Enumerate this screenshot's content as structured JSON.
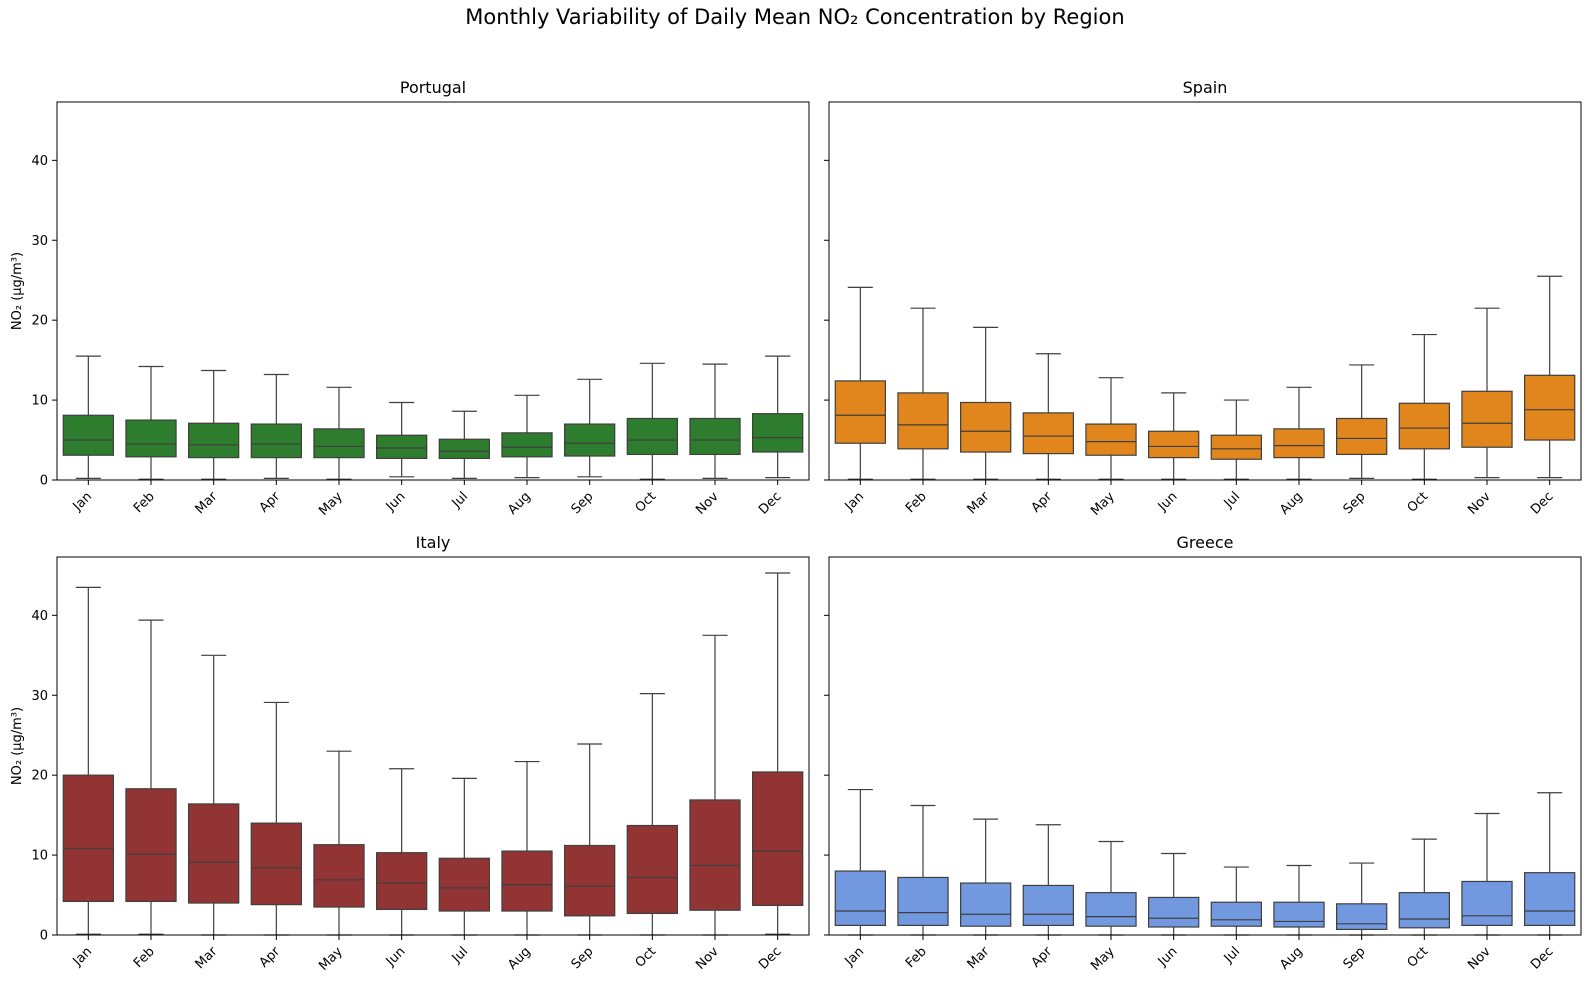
{
  "figure": {
    "title": "Monthly Variability of Daily Mean NO₂ Concentration by Region"
  },
  "chart_data": [
    {
      "type": "box",
      "title": "Portugal",
      "ylabel": "NO₂ (µg/m³)",
      "ylim": [
        0,
        47.3
      ],
      "yticks": [
        0,
        10,
        20,
        30,
        40
      ],
      "categories": [
        "Jan",
        "Feb",
        "Mar",
        "Apr",
        "May",
        "Jun",
        "Jul",
        "Aug",
        "Sep",
        "Oct",
        "Nov",
        "Dec"
      ],
      "color": "#2e7d2e",
      "boxes": [
        {
          "whislo": 0.2,
          "q1": 3.1,
          "med": 5.0,
          "q3": 8.1,
          "whishi": 15.5
        },
        {
          "whislo": 0.1,
          "q1": 2.9,
          "med": 4.5,
          "q3": 7.5,
          "whishi": 14.2
        },
        {
          "whislo": 0.1,
          "q1": 2.8,
          "med": 4.4,
          "q3": 7.1,
          "whishi": 13.7
        },
        {
          "whislo": 0.2,
          "q1": 2.8,
          "med": 4.5,
          "q3": 7.0,
          "whishi": 13.2
        },
        {
          "whislo": 0.1,
          "q1": 2.8,
          "med": 4.2,
          "q3": 6.4,
          "whishi": 11.6
        },
        {
          "whislo": 0.4,
          "q1": 2.7,
          "med": 4.0,
          "q3": 5.6,
          "whishi": 9.7
        },
        {
          "whislo": 0.2,
          "q1": 2.7,
          "med": 3.6,
          "q3": 5.1,
          "whishi": 8.6
        },
        {
          "whislo": 0.3,
          "q1": 2.9,
          "med": 4.1,
          "q3": 5.9,
          "whishi": 10.6
        },
        {
          "whislo": 0.4,
          "q1": 3.0,
          "med": 4.6,
          "q3": 7.0,
          "whishi": 12.6
        },
        {
          "whislo": 0.1,
          "q1": 3.2,
          "med": 5.0,
          "q3": 7.7,
          "whishi": 14.6
        },
        {
          "whislo": 0.2,
          "q1": 3.2,
          "med": 5.0,
          "q3": 7.7,
          "whishi": 14.5
        },
        {
          "whislo": 0.3,
          "q1": 3.5,
          "med": 5.3,
          "q3": 8.3,
          "whishi": 15.5
        }
      ]
    },
    {
      "type": "box",
      "title": "Spain",
      "ylabel": "",
      "ylim": [
        0,
        47.3
      ],
      "yticks": [
        0,
        10,
        20,
        30,
        40
      ],
      "categories": [
        "Jan",
        "Feb",
        "Mar",
        "Apr",
        "May",
        "Jun",
        "Jul",
        "Aug",
        "Sep",
        "Oct",
        "Nov",
        "Dec"
      ],
      "color": "#e0861c",
      "boxes": [
        {
          "whislo": 0.1,
          "q1": 4.6,
          "med": 8.1,
          "q3": 12.4,
          "whishi": 24.1
        },
        {
          "whislo": 0.1,
          "q1": 3.9,
          "med": 6.9,
          "q3": 10.9,
          "whishi": 21.5
        },
        {
          "whislo": 0.1,
          "q1": 3.5,
          "med": 6.1,
          "q3": 9.7,
          "whishi": 19.1
        },
        {
          "whislo": 0.1,
          "q1": 3.3,
          "med": 5.5,
          "q3": 8.4,
          "whishi": 15.8
        },
        {
          "whislo": 0.1,
          "q1": 3.1,
          "med": 4.8,
          "q3": 7.0,
          "whishi": 12.8
        },
        {
          "whislo": 0.1,
          "q1": 2.8,
          "med": 4.2,
          "q3": 6.1,
          "whishi": 10.9
        },
        {
          "whislo": 0.1,
          "q1": 2.6,
          "med": 3.9,
          "q3": 5.6,
          "whishi": 10.0
        },
        {
          "whislo": 0.1,
          "q1": 2.8,
          "med": 4.3,
          "q3": 6.4,
          "whishi": 11.6
        },
        {
          "whislo": 0.2,
          "q1": 3.2,
          "med": 5.2,
          "q3": 7.7,
          "whishi": 14.4
        },
        {
          "whislo": 0.1,
          "q1": 3.9,
          "med": 6.5,
          "q3": 9.6,
          "whishi": 18.2
        },
        {
          "whislo": 0.3,
          "q1": 4.1,
          "med": 7.1,
          "q3": 11.1,
          "whishi": 21.5
        },
        {
          "whislo": 0.3,
          "q1": 5.0,
          "med": 8.8,
          "q3": 13.1,
          "whishi": 25.5
        }
      ]
    },
    {
      "type": "box",
      "title": "Italy",
      "ylabel": "NO₂ (µg/m³)",
      "ylim": [
        0,
        47.3
      ],
      "yticks": [
        0,
        10,
        20,
        30,
        40
      ],
      "categories": [
        "Jan",
        "Feb",
        "Mar",
        "Apr",
        "May",
        "Jun",
        "Jul",
        "Aug",
        "Sep",
        "Oct",
        "Nov",
        "Dec"
      ],
      "color": "#933434",
      "boxes": [
        {
          "whislo": 0.1,
          "q1": 4.2,
          "med": 10.8,
          "q3": 20.0,
          "whishi": 43.5
        },
        {
          "whislo": 0.1,
          "q1": 4.2,
          "med": 10.1,
          "q3": 18.3,
          "whishi": 39.4
        },
        {
          "whislo": 0.0,
          "q1": 4.0,
          "med": 9.1,
          "q3": 16.4,
          "whishi": 35.0
        },
        {
          "whislo": 0.0,
          "q1": 3.8,
          "med": 8.4,
          "q3": 14.0,
          "whishi": 29.1
        },
        {
          "whislo": 0.0,
          "q1": 3.5,
          "med": 6.9,
          "q3": 11.3,
          "whishi": 23.0
        },
        {
          "whislo": 0.0,
          "q1": 3.2,
          "med": 6.5,
          "q3": 10.3,
          "whishi": 20.8
        },
        {
          "whislo": 0.0,
          "q1": 3.0,
          "med": 5.9,
          "q3": 9.6,
          "whishi": 19.6
        },
        {
          "whislo": 0.0,
          "q1": 3.0,
          "med": 6.3,
          "q3": 10.5,
          "whishi": 21.7
        },
        {
          "whislo": 0.0,
          "q1": 2.4,
          "med": 6.1,
          "q3": 11.2,
          "whishi": 23.9
        },
        {
          "whislo": 0.0,
          "q1": 2.7,
          "med": 7.2,
          "q3": 13.7,
          "whishi": 30.2
        },
        {
          "whislo": 0.0,
          "q1": 3.1,
          "med": 8.7,
          "q3": 16.9,
          "whishi": 37.5
        },
        {
          "whislo": 0.1,
          "q1": 3.7,
          "med": 10.5,
          "q3": 20.4,
          "whishi": 45.3
        }
      ]
    },
    {
      "type": "box",
      "title": "Greece",
      "ylabel": "",
      "ylim": [
        0,
        47.3
      ],
      "yticks": [
        0,
        10,
        20,
        30,
        40
      ],
      "categories": [
        "Jan",
        "Feb",
        "Mar",
        "Apr",
        "May",
        "Jun",
        "Jul",
        "Aug",
        "Sep",
        "Oct",
        "Nov",
        "Dec"
      ],
      "color": "#7299e0",
      "boxes": [
        {
          "whislo": 0.0,
          "q1": 1.2,
          "med": 3.0,
          "q3": 8.0,
          "whishi": 18.2
        },
        {
          "whislo": 0.0,
          "q1": 1.2,
          "med": 2.8,
          "q3": 7.2,
          "whishi": 16.2
        },
        {
          "whislo": 0.0,
          "q1": 1.1,
          "med": 2.6,
          "q3": 6.5,
          "whishi": 14.5
        },
        {
          "whislo": 0.0,
          "q1": 1.2,
          "med": 2.6,
          "q3": 6.2,
          "whishi": 13.8
        },
        {
          "whislo": 0.0,
          "q1": 1.1,
          "med": 2.3,
          "q3": 5.3,
          "whishi": 11.7
        },
        {
          "whislo": 0.0,
          "q1": 1.0,
          "med": 2.1,
          "q3": 4.7,
          "whishi": 10.2
        },
        {
          "whislo": 0.0,
          "q1": 1.1,
          "med": 1.9,
          "q3": 4.1,
          "whishi": 8.5
        },
        {
          "whislo": 0.0,
          "q1": 1.0,
          "med": 1.7,
          "q3": 4.1,
          "whishi": 8.7
        },
        {
          "whislo": 0.0,
          "q1": 0.7,
          "med": 1.4,
          "q3": 3.9,
          "whishi": 9.0
        },
        {
          "whislo": 0.0,
          "q1": 0.9,
          "med": 2.0,
          "q3": 5.3,
          "whishi": 12.0
        },
        {
          "whislo": 0.0,
          "q1": 1.2,
          "med": 2.4,
          "q3": 6.7,
          "whishi": 15.2
        },
        {
          "whislo": 0.0,
          "q1": 1.2,
          "med": 3.0,
          "q3": 7.8,
          "whishi": 17.8
        }
      ]
    }
  ]
}
